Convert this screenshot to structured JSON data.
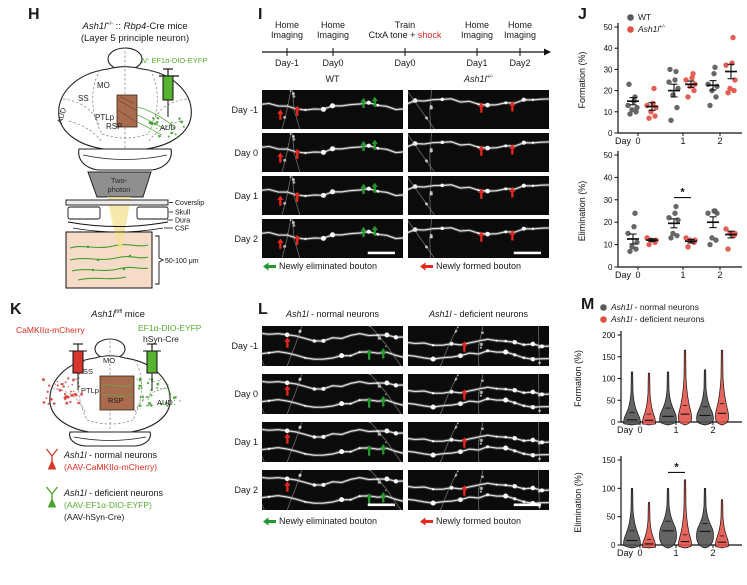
{
  "colors": {
    "formed_red": "#e8281e",
    "eliminated_green": "#22992e",
    "wt_gray": "#5a5a5a",
    "mutant_red": "#e25046",
    "label_green": "#58ab2f",
    "label_red": "#e02d22",
    "aav_green": "#5ab32f",
    "mcherry_red": "#d8352b",
    "brown_box": "#a06040",
    "tissue_pink": "#f6dcc8",
    "beam_yellow": "#f3e394"
  },
  "panel_h": {
    "letter": "H",
    "title_gene1": "Ash1l",
    "title_sup": "+/-",
    "title_sep": " :: ",
    "title_gene2": "Rbp4",
    "title_rest": "-Cre mice",
    "subtitle": "(Layer 5 principle neuron)",
    "aav_label": "AAV: EF1α-DIO-EYFP",
    "regions": {
      "mo": "MO",
      "ss": "SS",
      "ptlp": "PTLp",
      "rsp": "RSP",
      "aud_left": "AUD",
      "aud_right": "AUD"
    },
    "objective_line1": "Two-",
    "objective_line2": "photon",
    "layers": [
      "Coverslip",
      "Skull",
      "Dura",
      "CSF"
    ],
    "depth_label": "50-100 μm"
  },
  "panel_i": {
    "letter": "I",
    "timeline": [
      {
        "line1": "Home",
        "line2": "Imaging",
        "day": "Day-1"
      },
      {
        "line1": "Home",
        "line2": "Imaging",
        "day": "Day0"
      },
      {
        "line1": "Train",
        "line2": "CtxA tone + ",
        "line2_red": "shock",
        "day": "Day0"
      },
      {
        "line1": "Home",
        "line2": "Imaging",
        "day": "Day1"
      },
      {
        "line1": "Home",
        "line2": "Imaging",
        "day": "Day2"
      }
    ],
    "col_wt": "WT",
    "col_mut_gene": "Ash1l",
    "col_mut_sup": "+/-",
    "rows": [
      "Day -1",
      "Day 0",
      "Day 1",
      "Day 2"
    ],
    "legend_eliminated": "Newly eliminated bouton",
    "legend_formed": "Newly formed bouton"
  },
  "panel_j": {
    "letter": "J",
    "legend": {
      "wt": "WT",
      "mut_gene": "Ash1l",
      "mut_sup": "+/-"
    }
  },
  "panel_k": {
    "letter": "K",
    "title_gene": "Ash1l",
    "title_sup": "fl/fl",
    "title_rest": " mice",
    "label_red": "CaMKIIα-mCherry",
    "label_green": "EF1α-DIO-EYFP",
    "label_cre": "hSyn-Cre",
    "regions": {
      "mo": "MO",
      "ss": "SS",
      "ptlp": "PTLp",
      "rsp": "RSP",
      "aud": "AUD"
    },
    "legend": {
      "normal_gene": "Ash1l",
      "normal_rest": " - normal neurons",
      "normal_sub": "(AAV-CaMKIIα-mCherry)",
      "def_gene": "Ash1l",
      "def_rest": " - deficient neurons",
      "def_sub1": "(AAV-EF1α-DIO-EYFP)",
      "def_sub2": "(AAV-hSyn-Cre)"
    }
  },
  "panel_l": {
    "letter": "L",
    "col_normal": {
      "gene": "Ash1l",
      "rest": " - normal neurons"
    },
    "col_def": {
      "gene": "Ash1l",
      "rest": " - deficient neurons"
    },
    "rows": [
      "Day -1",
      "Day 0",
      "Day 1",
      "Day 2"
    ],
    "legend_eliminated": "Newly eliminated bouton",
    "legend_formed": "Newly formed bouton"
  },
  "panel_m": {
    "letter": "M",
    "legend": {
      "normal_gene": "Ash1l",
      "normal_rest": " - normal neurons",
      "def_gene": "Ash1l",
      "def_rest": " - deficient neurons"
    }
  },
  "chart_data": [
    {
      "id": "j-formation",
      "type": "scatter",
      "title": "",
      "ylabel": "Formation (%)",
      "xlabel": "Day",
      "ylim": [
        0,
        50
      ],
      "yticks": [
        0,
        10,
        20,
        30,
        40,
        50
      ],
      "categories": [
        "0",
        "1",
        "2"
      ],
      "legend_position": "top-left-inside",
      "series": [
        {
          "name": "WT",
          "color": "#5a5a5a",
          "values": [
            [
              9,
              10,
              11,
              12,
              13,
              15,
              17,
              23
            ],
            [
              6,
              12,
              18,
              21,
              24,
              25,
              29,
              30
            ],
            [
              13,
              17,
              20,
              22,
              23,
              28,
              31
            ]
          ],
          "mean": [
            15,
            20,
            22.5
          ],
          "sem": [
            1.7,
            3,
            2.2
          ]
        },
        {
          "name": "Ash1l+/-",
          "color": "#e25046",
          "values": [
            [
              7,
              8,
              10,
              12,
              13,
              14,
              21
            ],
            [
              17,
              20,
              22,
              23,
              25,
              26,
              28
            ],
            [
              19,
              20,
              21,
              25,
              32,
              33,
              45
            ]
          ],
          "mean": [
            12.5,
            23,
            29
          ],
          "sem": [
            1.8,
            1.5,
            3.4
          ]
        }
      ]
    },
    {
      "id": "j-elimination",
      "type": "scatter",
      "title": "",
      "ylabel": "Elimination (%)",
      "xlabel": "Day",
      "ylim": [
        0,
        50
      ],
      "yticks": [
        0,
        10,
        20,
        30,
        40,
        50
      ],
      "categories": [
        "0",
        "1",
        "2"
      ],
      "series": [
        {
          "name": "WT",
          "color": "#5a5a5a",
          "values": [
            [
              7,
              8,
              9,
              11,
              15,
              18,
              24
            ],
            [
              13,
              14,
              15,
              21,
              22,
              24,
              27
            ],
            [
              10,
              12,
              13,
              24,
              24,
              25,
              25
            ]
          ],
          "mean": [
            12.5,
            19.5,
            20
          ],
          "sem": [
            2.2,
            2,
            2.4
          ]
        },
        {
          "name": "Ash1l+/-",
          "color": "#e25046",
          "values": [
            [
              10,
              11,
              12,
              12,
              13
            ],
            [
              9,
              11,
              12,
              12,
              13
            ],
            [
              8,
              14,
              15,
              15,
              17
            ]
          ],
          "mean": [
            12,
            11.5,
            14.5
          ],
          "sem": [
            0.6,
            0.8,
            1.5
          ]
        }
      ],
      "significance": {
        "category_index": 1,
        "label": "*",
        "y": 31
      }
    },
    {
      "id": "m-formation",
      "type": "violin",
      "title": "",
      "ylabel": "Formation (%)",
      "xlabel": "Day",
      "ylim": [
        0,
        200
      ],
      "yticks": [
        0,
        50,
        100,
        150,
        200
      ],
      "categories": [
        "0",
        "1",
        "2"
      ],
      "series": [
        {
          "name": "Ash1l - normal neurons",
          "color": "#4f4f4f",
          "w": 9,
          "stats": [
            {
              "median": 5,
              "q3": 22,
              "max": 115
            },
            {
              "median": 13,
              "q3": 32,
              "max": 115
            },
            {
              "median": 15,
              "q3": 35,
              "max": 120
            }
          ]
        },
        {
          "name": "Ash1l - deficient neurons",
          "color": "#e25046",
          "w": 7,
          "stats": [
            {
              "median": 4,
              "q3": 18,
              "max": 112
            },
            {
              "median": 18,
              "q3": 38,
              "max": 165
            },
            {
              "median": 20,
              "q3": 42,
              "max": 165
            }
          ]
        }
      ]
    },
    {
      "id": "m-elimination",
      "type": "violin",
      "title": "",
      "ylabel": "Elimination (%)",
      "xlabel": "Day",
      "ylim": [
        0,
        150
      ],
      "yticks": [
        0,
        50,
        100,
        150
      ],
      "categories": [
        "0",
        "1",
        "2"
      ],
      "series": [
        {
          "name": "Ash1l - normal neurons",
          "color": "#4f4f4f",
          "w": 9,
          "stats": [
            {
              "median": 8,
              "q3": 25,
              "max": 100
            },
            {
              "median": 25,
              "q3": 42,
              "max": 100
            },
            {
              "median": 24,
              "q3": 38,
              "max": 100
            }
          ]
        },
        {
          "name": "Ash1l - deficient neurons",
          "color": "#e25046",
          "w": 7,
          "stats": [
            {
              "median": 2,
              "q3": 10,
              "max": 75
            },
            {
              "median": 6,
              "q3": 18,
              "max": 115
            },
            {
              "median": 5,
              "q3": 16,
              "max": 80
            }
          ]
        }
      ],
      "significance": {
        "category_index": 1,
        "label": "*",
        "y": 128
      }
    }
  ]
}
